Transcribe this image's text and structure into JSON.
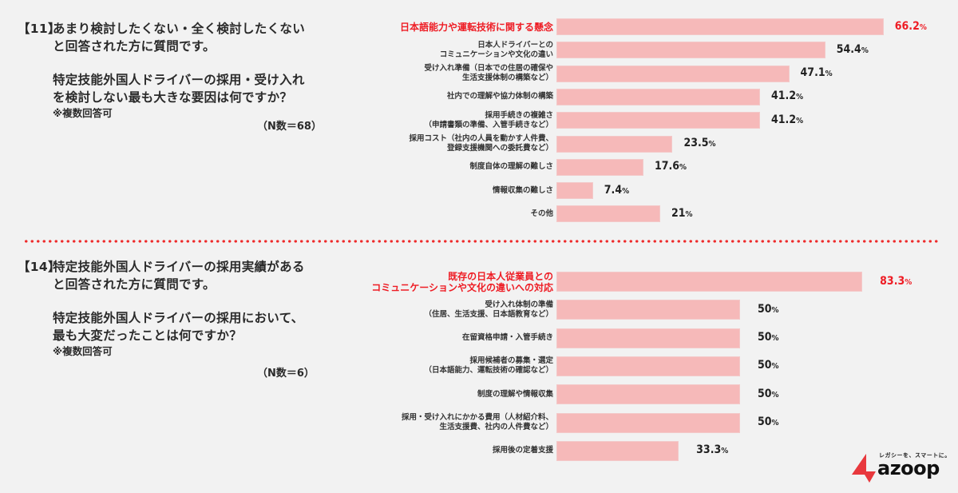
{
  "q11": {
    "number": "【11】",
    "lines": [
      "あまり検討したくない・全く検討したくない",
      "と回答された方に質問です。"
    ],
    "question_lines": [
      "特定技能外国人ドライバーの採用・受け入れ",
      "を検討しない最も大きな要因は何ですか？"
    ],
    "note": "※複数回答可",
    "n": "（N数＝68）"
  },
  "q14": {
    "number": "【14】",
    "lines": [
      "特定技能外国人ドライバーの採用実績がある",
      "と回答された方に質問です。"
    ],
    "question_lines": [
      "特定技能外国人ドライバーの採用において、",
      "最も大変だったことは何ですか？"
    ],
    "note": "※複数回答可",
    "n": "（N数＝6）"
  },
  "colors": {
    "bar": "#f6b9b9",
    "highlight": "#ee1c24",
    "divider": "#ee2a2a",
    "background": "#f2f2f2"
  },
  "logo": {
    "tagline": "レガシーを、スマートに。",
    "wordmark": "azoop"
  },
  "chart_data": [
    {
      "type": "bar",
      "orientation": "horizontal",
      "title": "【11】特定技能外国人ドライバーの採用・受け入れを検討しない最も大きな要因は何ですか？",
      "n": 68,
      "xlabel": "",
      "ylabel": "",
      "grid": false,
      "categories": [
        "日本語能力や運転技術に関する懸念",
        "日本人ドライバーとの\nコミュニケーションや文化の違い",
        "受け入れ準備（日本での住居の確保や\n生活支援体制の構築など）",
        "社内での理解や協力体制の構築",
        "採用手続きの複雑さ\n（申請書類の準備、入管手続きなど）",
        "採用コスト（社内の人員を動かす人件費、\n登録支援機関への委託費など）",
        "制度自体の理解の難しさ",
        "情報収集の難しさ",
        "その他"
      ],
      "values": [
        66.2,
        54.4,
        47.1,
        41.2,
        41.2,
        23.5,
        17.6,
        7.4,
        21
      ],
      "value_labels": [
        "66.2",
        "54.4",
        "47.1",
        "41.2",
        "41.2",
        "23.5",
        "17.6",
        "7.4",
        "21"
      ],
      "unit": "%",
      "highlight_index": 0
    },
    {
      "type": "bar",
      "orientation": "horizontal",
      "title": "【14】特定技能外国人ドライバーの採用において、最も大変だったことは何ですか？",
      "n": 6,
      "xlabel": "",
      "ylabel": "",
      "grid": false,
      "categories": [
        "既存の日本人従業員との\nコミュニケーションや文化の違いへの対応",
        "受け入れ体制の準備\n（住居、生活支援、日本語教育など）",
        "在留資格申請・入管手続き",
        "採用候補者の募集・選定\n（日本語能力、運転技術の確認など）",
        "制度の理解や情報収集",
        "採用・受け入れにかかる費用（人材紹介料、\n生活支援費、社内の人件費など）",
        "採用後の定着支援"
      ],
      "values": [
        83.3,
        50,
        50,
        50,
        50,
        50,
        33.3
      ],
      "value_labels": [
        "83.3",
        "50",
        "50",
        "50",
        "50",
        "50",
        "33.3"
      ],
      "unit": "%",
      "highlight_index": 0
    }
  ]
}
